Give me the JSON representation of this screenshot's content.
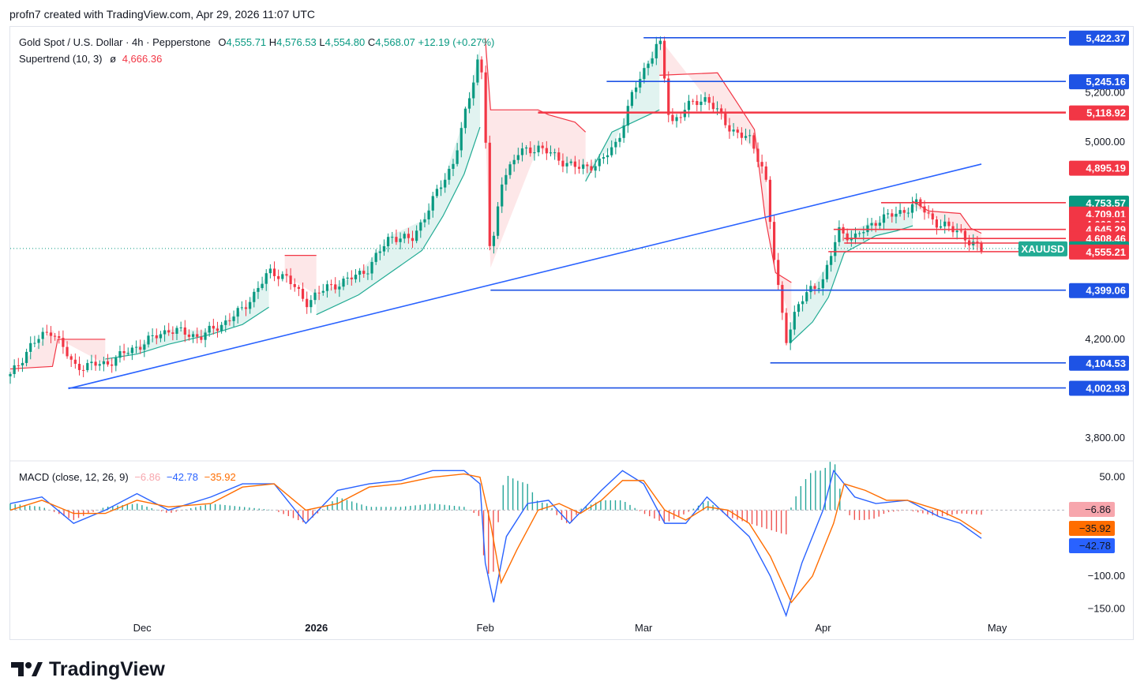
{
  "header": {
    "caption": "profn7 created with TradingView.com, Apr 29, 2026 11:07 UTC"
  },
  "legend": {
    "instrument": "Gold Spot / U.S. Dollar · 4h · Pepperstone",
    "open_label": "O",
    "open": "4,555.71",
    "high_label": "H",
    "high": "4,576.53",
    "low_label": "L",
    "low": "4,554.80",
    "close_label": "C",
    "close": "4,568.07",
    "change": "+12.19 (+0.27%)",
    "supertrend_label": "Supertrend (10, 3)",
    "supertrend_symbol": "ø",
    "supertrend_value": "4,666.36",
    "macd_label": "MACD (close, 12, 26, 9)",
    "macd_hist": "−6.86",
    "macd_line": "−42.78",
    "macd_signal": "−35.92"
  },
  "brand": {
    "name": "TradingView",
    "icon": "tradingview-logo-icon"
  },
  "colors": {
    "up": "#089981",
    "down": "#f23645",
    "blue_line": "#1e53e5",
    "trend": "#2962ff",
    "macd": "#2962ff",
    "signal": "#ff6d00"
  },
  "chart_data": [
    {
      "type": "candlestick",
      "title": "Gold Spot / U.S. Dollar · 4h · Pepperstone",
      "x_ticks": [
        "Dec",
        "2026",
        "Feb",
        "Mar",
        "Apr",
        "May"
      ],
      "y_ticks": [
        "3,800.00",
        "4,200.00",
        "5,000.00",
        "5,200.00"
      ],
      "ylim": [
        3720,
        5460
      ],
      "symbol_tag": "XAUUSD",
      "price_tags": [
        {
          "value": 5422.37,
          "label": "5,422.37",
          "color": "#1e53e5"
        },
        {
          "value": 5245.16,
          "label": "5,245.16",
          "color": "#1e53e5"
        },
        {
          "value": 5118.92,
          "label": "5,118.92",
          "color": "#f23645"
        },
        {
          "value": 4895.19,
          "label": "4,895.19",
          "color": "#f23645"
        },
        {
          "value": 4753.57,
          "label": "4,753.57",
          "color": "#089981"
        },
        {
          "value": 4709.01,
          "label": "4,709.01",
          "color": "#f23645"
        },
        {
          "value": 4666.36,
          "label": "4,666.36",
          "color": "#f23645"
        },
        {
          "value": 4645.29,
          "label": "4,645.29",
          "color": "#f23645"
        },
        {
          "value": 4608.46,
          "label": "4,608.46",
          "color": "#f23645"
        },
        {
          "value": 4568.07,
          "label": "4,568.07",
          "color": "#089981"
        },
        {
          "value": 4555.21,
          "label": "4,555.21",
          "color": "#f23645"
        },
        {
          "value": 4399.06,
          "label": "4,399.06",
          "color": "#1e53e5"
        },
        {
          "value": 4104.53,
          "label": "4,104.53",
          "color": "#1e53e5"
        },
        {
          "value": 4002.93,
          "label": "4,002.93",
          "color": "#1e53e5"
        }
      ],
      "close_path": [
        [
          0,
          4050
        ],
        [
          0.02,
          4180
        ],
        [
          0.04,
          4240
        ],
        [
          0.06,
          4090
        ],
        [
          0.09,
          4100
        ],
        [
          0.12,
          4170
        ],
        [
          0.15,
          4240
        ],
        [
          0.18,
          4210
        ],
        [
          0.2,
          4260
        ],
        [
          0.22,
          4320
        ],
        [
          0.245,
          4470
        ],
        [
          0.26,
          4460
        ],
        [
          0.28,
          4350
        ],
        [
          0.3,
          4410
        ],
        [
          0.32,
          4440
        ],
        [
          0.34,
          4490
        ],
        [
          0.36,
          4620
        ],
        [
          0.38,
          4600
        ],
        [
          0.4,
          4760
        ],
        [
          0.42,
          4920
        ],
        [
          0.435,
          5180
        ],
        [
          0.445,
          5380
        ],
        [
          0.45,
          5050
        ],
        [
          0.455,
          4490
        ],
        [
          0.465,
          4840
        ],
        [
          0.48,
          4950
        ],
        [
          0.5,
          4980
        ],
        [
          0.52,
          4930
        ],
        [
          0.54,
          4890
        ],
        [
          0.56,
          4920
        ],
        [
          0.575,
          5000
        ],
        [
          0.59,
          5200
        ],
        [
          0.605,
          5330
        ],
        [
          0.615,
          5420
        ],
        [
          0.625,
          5070
        ],
        [
          0.64,
          5140
        ],
        [
          0.66,
          5180
        ],
        [
          0.68,
          5060
        ],
        [
          0.7,
          5010
        ],
        [
          0.715,
          4880
        ],
        [
          0.725,
          4470
        ],
        [
          0.735,
          4200
        ],
        [
          0.745,
          4330
        ],
        [
          0.76,
          4410
        ],
        [
          0.77,
          4440
        ],
        [
          0.785,
          4640
        ],
        [
          0.8,
          4610
        ],
        [
          0.82,
          4680
        ],
        [
          0.84,
          4710
        ],
        [
          0.86,
          4750
        ],
        [
          0.88,
          4660
        ],
        [
          0.9,
          4640
        ],
        [
          0.91,
          4580
        ],
        [
          0.92,
          4568
        ]
      ],
      "supertrend": [
        {
          "dir": "down",
          "points": [
            [
              0,
              4080
            ],
            [
              0.04,
              4090
            ],
            [
              0.045,
              4200
            ],
            [
              0.09,
              4200
            ]
          ]
        },
        {
          "dir": "up",
          "points": [
            [
              0.09,
              4120
            ],
            [
              0.12,
              4140
            ],
            [
              0.15,
              4180
            ],
            [
              0.19,
              4220
            ],
            [
              0.22,
              4260
            ],
            [
              0.245,
              4330
            ]
          ]
        },
        {
          "dir": "down",
          "points": [
            [
              0.26,
              4540
            ],
            [
              0.29,
              4540
            ]
          ]
        },
        {
          "dir": "up",
          "points": [
            [
              0.29,
              4300
            ],
            [
              0.33,
              4380
            ],
            [
              0.36,
              4470
            ],
            [
              0.39,
              4560
            ],
            [
              0.41,
              4700
            ],
            [
              0.43,
              4870
            ],
            [
              0.445,
              5060
            ]
          ]
        },
        {
          "dir": "down",
          "points": [
            [
              0.45,
              5420
            ],
            [
              0.455,
              5130
            ],
            [
              0.5,
              5130
            ],
            [
              0.51,
              5110
            ],
            [
              0.535,
              5080
            ],
            [
              0.545,
              5040
            ]
          ]
        },
        {
          "dir": "up",
          "points": [
            [
              0.545,
              4840
            ],
            [
              0.57,
              5040
            ],
            [
              0.6,
              5100
            ],
            [
              0.615,
              5130
            ]
          ]
        },
        {
          "dir": "down",
          "points": [
            [
              0.615,
              5270
            ],
            [
              0.67,
              5280
            ],
            [
              0.69,
              5150
            ],
            [
              0.705,
              5050
            ],
            [
              0.715,
              4700
            ],
            [
              0.725,
              4470
            ],
            [
              0.74,
              4430
            ]
          ]
        },
        {
          "dir": "up",
          "points": [
            [
              0.74,
              4190
            ],
            [
              0.76,
              4270
            ],
            [
              0.775,
              4370
            ],
            [
              0.79,
              4550
            ],
            [
              0.82,
              4620
            ],
            [
              0.84,
              4640
            ],
            [
              0.855,
              4660
            ]
          ]
        },
        {
          "dir": "down",
          "points": [
            [
              0.855,
              4760
            ],
            [
              0.87,
              4720
            ],
            [
              0.9,
              4710
            ],
            [
              0.91,
              4650
            ],
            [
              0.92,
              4630
            ]
          ]
        }
      ],
      "horizontal_levels": [
        {
          "value": 5422.37,
          "x_from": 0.6,
          "color": "#1e53e5"
        },
        {
          "value": 5245.16,
          "x_from": 0.565,
          "color": "#1e53e5"
        },
        {
          "value": 5118.92,
          "x_from": 0.5,
          "color": "#f23645"
        },
        {
          "value": 4753.57,
          "x_from": 0.825,
          "color": "#f23645"
        },
        {
          "value": 4645.29,
          "x_from": 0.78,
          "color": "#f23645"
        },
        {
          "value": 4608.46,
          "x_from": 0.79,
          "color": "#f23645"
        },
        {
          "value": 4590,
          "x_from": 0.79,
          "color": "#f23645"
        },
        {
          "value": 4555.21,
          "x_from": 0.775,
          "color": "#f23645"
        },
        {
          "value": 4399.06,
          "x_from": 0.455,
          "color": "#1e53e5"
        },
        {
          "value": 4104.53,
          "x_from": 0.72,
          "color": "#1e53e5"
        },
        {
          "value": 4002.93,
          "x_from": 0.055,
          "color": "#1e53e5"
        }
      ],
      "trendline": {
        "from": [
          0.055,
          4000
        ],
        "to": [
          0.92,
          4910
        ],
        "color": "#2962ff"
      }
    },
    {
      "type": "line",
      "title": "MACD (close, 12, 26, 9)",
      "y_ticks": [
        "50.00",
        "−100.00",
        "−150.00"
      ],
      "ylim": [
        -160,
        70
      ],
      "series": [
        {
          "name": "MACD",
          "color": "#2962ff",
          "points": [
            [
              0,
              10
            ],
            [
              0.03,
              20
            ],
            [
              0.06,
              -20
            ],
            [
              0.09,
              0
            ],
            [
              0.12,
              25
            ],
            [
              0.15,
              0
            ],
            [
              0.19,
              20
            ],
            [
              0.22,
              40
            ],
            [
              0.25,
              40
            ],
            [
              0.28,
              -20
            ],
            [
              0.31,
              30
            ],
            [
              0.34,
              40
            ],
            [
              0.37,
              45
            ],
            [
              0.4,
              60
            ],
            [
              0.43,
              60
            ],
            [
              0.445,
              40
            ],
            [
              0.45,
              -80
            ],
            [
              0.458,
              -140
            ],
            [
              0.47,
              -40
            ],
            [
              0.49,
              10
            ],
            [
              0.51,
              15
            ],
            [
              0.53,
              -20
            ],
            [
              0.56,
              30
            ],
            [
              0.58,
              60
            ],
            [
              0.6,
              40
            ],
            [
              0.62,
              -20
            ],
            [
              0.64,
              -20
            ],
            [
              0.66,
              20
            ],
            [
              0.68,
              -10
            ],
            [
              0.7,
              -40
            ],
            [
              0.72,
              -100
            ],
            [
              0.735,
              -160
            ],
            [
              0.75,
              -80
            ],
            [
              0.77,
              0
            ],
            [
              0.78,
              60
            ],
            [
              0.8,
              20
            ],
            [
              0.82,
              10
            ],
            [
              0.85,
              15
            ],
            [
              0.88,
              -10
            ],
            [
              0.9,
              -20
            ],
            [
              0.92,
              -42.78
            ]
          ]
        },
        {
          "name": "Signal",
          "color": "#ff6d00",
          "points": [
            [
              0,
              0
            ],
            [
              0.03,
              15
            ],
            [
              0.06,
              -5
            ],
            [
              0.09,
              -5
            ],
            [
              0.12,
              15
            ],
            [
              0.15,
              5
            ],
            [
              0.19,
              10
            ],
            [
              0.22,
              35
            ],
            [
              0.25,
              40
            ],
            [
              0.28,
              0
            ],
            [
              0.31,
              10
            ],
            [
              0.34,
              35
            ],
            [
              0.37,
              40
            ],
            [
              0.4,
              50
            ],
            [
              0.43,
              55
            ],
            [
              0.445,
              50
            ],
            [
              0.455,
              -20
            ],
            [
              0.465,
              -110
            ],
            [
              0.48,
              -60
            ],
            [
              0.5,
              0
            ],
            [
              0.52,
              10
            ],
            [
              0.54,
              -5
            ],
            [
              0.56,
              15
            ],
            [
              0.58,
              45
            ],
            [
              0.6,
              45
            ],
            [
              0.62,
              0
            ],
            [
              0.64,
              -15
            ],
            [
              0.66,
              5
            ],
            [
              0.68,
              0
            ],
            [
              0.7,
              -20
            ],
            [
              0.72,
              -70
            ],
            [
              0.74,
              -140
            ],
            [
              0.76,
              -100
            ],
            [
              0.78,
              -20
            ],
            [
              0.79,
              40
            ],
            [
              0.81,
              30
            ],
            [
              0.83,
              15
            ],
            [
              0.85,
              15
            ],
            [
              0.88,
              0
            ],
            [
              0.9,
              -15
            ],
            [
              0.92,
              -35.92
            ]
          ]
        }
      ]
    }
  ]
}
